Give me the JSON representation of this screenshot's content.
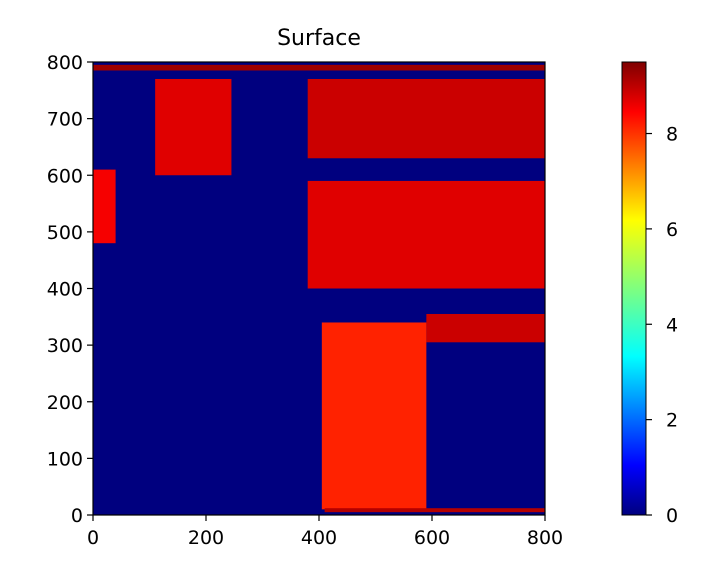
{
  "chart_data": {
    "type": "heatmap",
    "title": "Surface",
    "xlabel": "",
    "ylabel": "",
    "xlim": [
      0,
      800
    ],
    "ylim": [
      0,
      800
    ],
    "x_ticks": [
      "0",
      "200",
      "400",
      "600",
      "800"
    ],
    "y_ticks": [
      "0",
      "100",
      "200",
      "300",
      "400",
      "500",
      "600",
      "700",
      "800"
    ],
    "colorbar": {
      "colormap": "jet",
      "vmin": 0,
      "vmax": 9.5,
      "ticks": [
        "0",
        "2",
        "4",
        "6",
        "8"
      ]
    },
    "background_value": 0,
    "regions": [
      {
        "name": "upper-left-speckle",
        "x": [
          110,
          245
        ],
        "y": [
          600,
          770
        ],
        "value": 8.6
      },
      {
        "name": "left-edge-speckle",
        "x": [
          0,
          40
        ],
        "y": [
          480,
          610
        ],
        "value": 8.4
      },
      {
        "name": "top-stripe",
        "x": [
          0,
          800
        ],
        "y": [
          785,
          795
        ],
        "value": 9.2
      },
      {
        "name": "right-band-upper",
        "x": [
          380,
          800
        ],
        "y": [
          630,
          770
        ],
        "value": 8.8
      },
      {
        "name": "right-band-middle",
        "x": [
          380,
          800
        ],
        "y": [
          400,
          590
        ],
        "value": 8.6
      },
      {
        "name": "right-band-lower",
        "x": [
          590,
          800
        ],
        "y": [
          305,
          355
        ],
        "value": 8.8
      },
      {
        "name": "lower-center-block",
        "x": [
          405,
          590
        ],
        "y": [
          10,
          340
        ],
        "value": 8.0
      },
      {
        "name": "bottom-stripe",
        "x": [
          410,
          800
        ],
        "y": [
          5,
          12
        ],
        "value": 9.0
      }
    ]
  }
}
